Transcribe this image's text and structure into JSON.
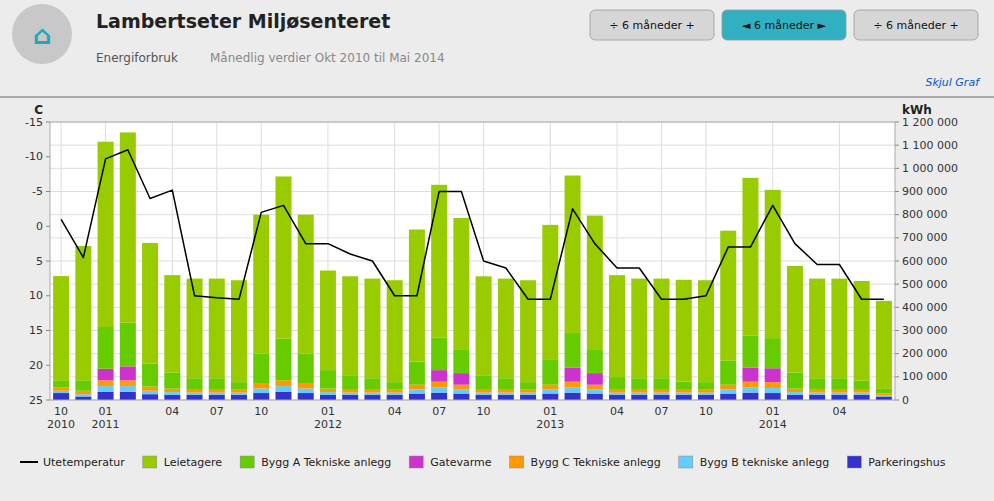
{
  "chart_data": {
    "type": "bar",
    "title": "Lambertseter Miljøsenteret",
    "subtitle": "Energiforbruk",
    "annotations": [
      "⌂",
      "Månedlig verdier Okt 2010 til Mai 2014",
      "Skjul Graf",
      "÷  6 måneder  +",
      "◄  6 måneder  ►",
      "÷  6 måneder  +"
    ],
    "y_label": "kWh",
    "y2_label": "C",
    "stacked": true,
    "grid": true,
    "legend": "bottom",
    "categories": [
      "10\n2010",
      null,
      "01\n2011",
      null,
      null,
      "04",
      null,
      "07",
      null,
      "10",
      null,
      null,
      "01\n2012",
      null,
      null,
      "04",
      null,
      "07",
      null,
      "10",
      null,
      null,
      "01\n2013",
      null,
      null,
      "04",
      null,
      "07",
      null,
      "10",
      null,
      null,
      "01\n2014",
      null,
      null,
      "04",
      null,
      null
    ],
    "series": [
      {
        "name": "Parkeringshus",
        "color": "#3333cc",
        "values": [
          30000,
          15000,
          35000,
          35000,
          25000,
          22000,
          22000,
          22000,
          22000,
          30000,
          35000,
          30000,
          22000,
          22000,
          22000,
          22000,
          28000,
          32000,
          28000,
          22000,
          22000,
          22000,
          28000,
          32000,
          28000,
          22000,
          22000,
          22000,
          22000,
          22000,
          28000,
          32000,
          30000,
          22000,
          22000,
          22000,
          22000,
          15000
        ]
      },
      {
        "name": "Bygg B tekniske anlegg",
        "color": "#66ccff",
        "values": [
          10000,
          10000,
          25000,
          25000,
          15000,
          12000,
          10000,
          10000,
          10000,
          20000,
          25000,
          20000,
          12000,
          10000,
          10000,
          10000,
          18000,
          22000,
          18000,
          10000,
          10000,
          10000,
          18000,
          22000,
          18000,
          10000,
          10000,
          10000,
          10000,
          10000,
          18000,
          22000,
          22000,
          12000,
          10000,
          10000,
          10000,
          5000
        ]
      },
      {
        "name": "Bygg C Tekniske anlegg",
        "color": "#ff9900",
        "values": [
          15000,
          15000,
          25000,
          25000,
          18000,
          15000,
          12000,
          12000,
          15000,
          20000,
          25000,
          20000,
          15000,
          12000,
          12000,
          15000,
          20000,
          25000,
          20000,
          12000,
          12000,
          15000,
          20000,
          25000,
          20000,
          12000,
          12000,
          12000,
          12000,
          15000,
          20000,
          25000,
          25000,
          15000,
          12000,
          12000,
          12000,
          8000
        ]
      },
      {
        "name": "Gatevarme",
        "color": "#cc33cc",
        "values": [
          0,
          0,
          50000,
          60000,
          0,
          0,
          0,
          0,
          0,
          0,
          0,
          0,
          0,
          0,
          0,
          0,
          0,
          50000,
          50000,
          0,
          0,
          0,
          0,
          60000,
          50000,
          0,
          0,
          0,
          0,
          0,
          0,
          60000,
          60000,
          0,
          0,
          0,
          0,
          0
        ]
      },
      {
        "name": "Bygg A Tekniske anlegg",
        "color": "#66cc00",
        "values": [
          30000,
          45000,
          180000,
          190000,
          100000,
          70000,
          50000,
          50000,
          30000,
          130000,
          180000,
          130000,
          80000,
          60000,
          50000,
          30000,
          100000,
          140000,
          100000,
          60000,
          50000,
          30000,
          110000,
          150000,
          100000,
          55000,
          50000,
          50000,
          35000,
          30000,
          105000,
          140000,
          130000,
          70000,
          50000,
          50000,
          40000,
          20000
        ]
      },
      {
        "name": "Leietagere",
        "color": "#99cc00",
        "values": [
          450000,
          580000,
          800000,
          820000,
          520000,
          420000,
          430000,
          430000,
          440000,
          600000,
          700000,
          600000,
          430000,
          430000,
          430000,
          440000,
          570000,
          660000,
          570000,
          430000,
          430000,
          440000,
          580000,
          680000,
          580000,
          440000,
          430000,
          430000,
          440000,
          440000,
          560000,
          680000,
          640000,
          460000,
          430000,
          430000,
          430000,
          380000
        ]
      },
      {
        "name": "Utetemperatur",
        "type": "line",
        "axis": "y2",
        "color": "#000000",
        "values": [
          -1.0,
          4.5,
          -9.7,
          -11.0,
          -4.0,
          -5.2,
          10.0,
          10.3,
          10.5,
          -2.0,
          -3.0,
          2.5,
          2.5,
          4.0,
          5.0,
          10.0,
          10.0,
          -5.0,
          -5.0,
          5.0,
          6.0,
          10.5,
          10.5,
          -2.5,
          2.5,
          6.0,
          6.0,
          10.5,
          10.5,
          10.0,
          3.0,
          3.0,
          -3.0,
          2.5,
          5.5,
          5.5,
          10.5,
          10.5
        ]
      }
    ],
    "ylim": [
      0,
      1200000
    ],
    "yticks": [
      0,
      {
        "value": 100000,
        "label": "100 000"
      },
      {
        "value": 200000,
        "label": "200 000"
      },
      {
        "value": 300000,
        "label": "300 000"
      },
      {
        "value": 400000,
        "label": "400 000"
      },
      {
        "value": 500000,
        "label": "500 000"
      },
      {
        "value": 600000,
        "label": "600 000"
      },
      {
        "value": 700000,
        "label": "700 000"
      },
      {
        "value": 800000,
        "label": "800 000"
      },
      {
        "value": 900000,
        "label": "900 000"
      },
      {
        "value": 1000000,
        "label": "1 000 000"
      },
      {
        "value": 1100000,
        "label": "1 100 000"
      },
      {
        "value": 1200000,
        "label": "1 200 000"
      }
    ],
    "y2lim": [
      25,
      -15
    ],
    "y2ticks": [
      25,
      20,
      15,
      10,
      5,
      0,
      -5,
      -10,
      -15
    ]
  }
}
